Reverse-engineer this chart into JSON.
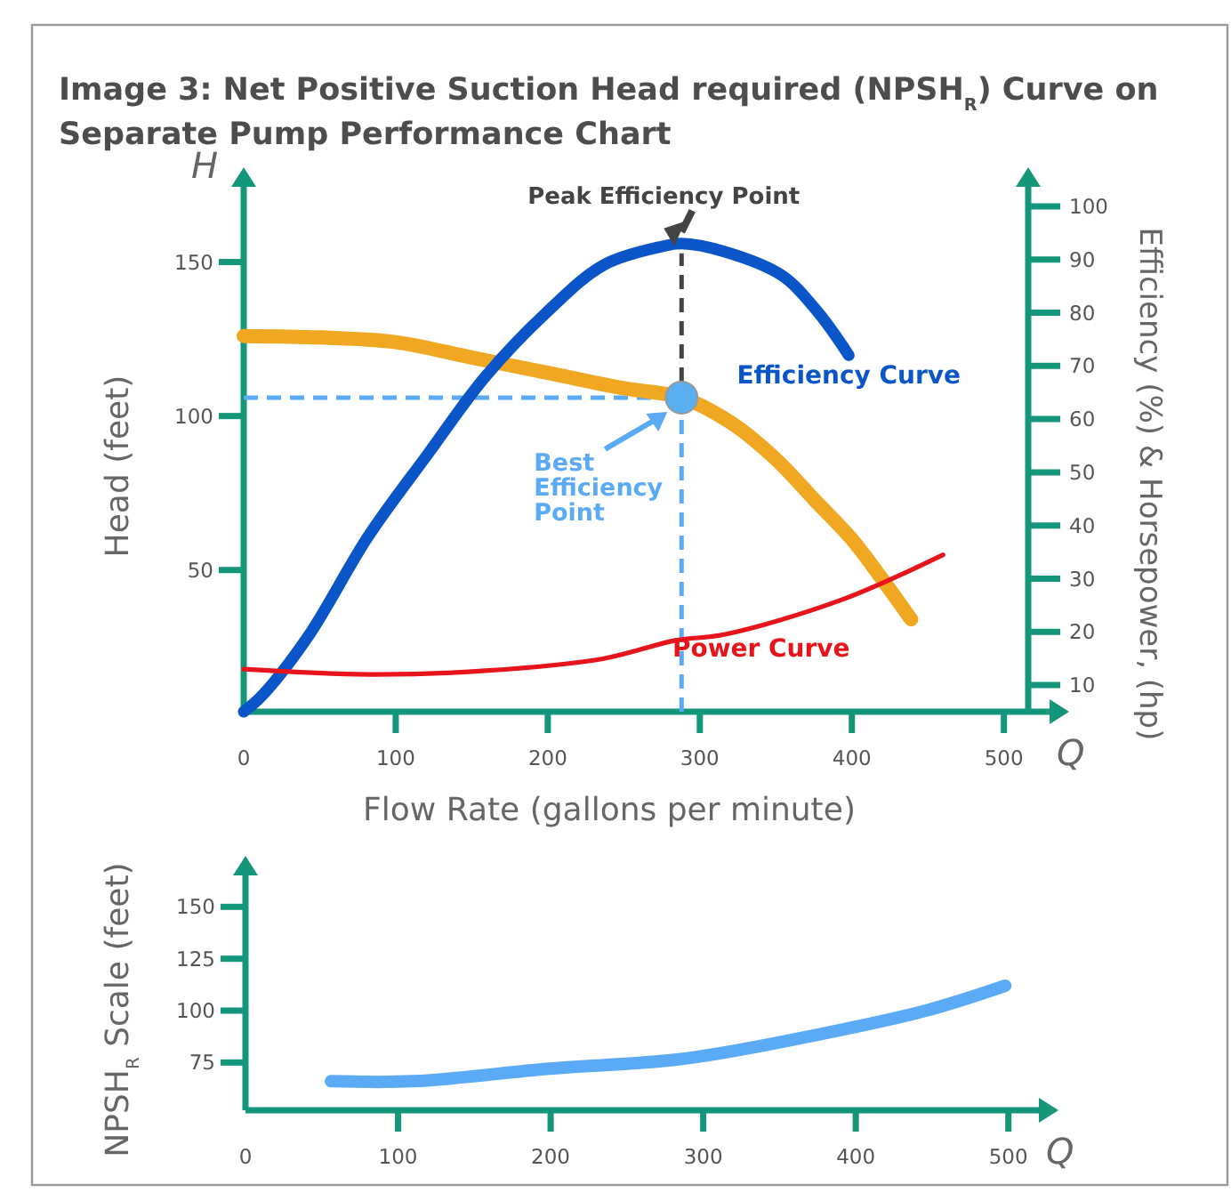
{
  "chart_data": [
    {
      "type": "line",
      "title": "Image 3: Net Positive Suction Head required (NPSH$_{R}$) Curve on Separate Pump Performance Chart",
      "xlabel": "Flow Rate (gallons per minute)",
      "ylabel": "Head (feet)",
      "y2label": "Efficiency (%) & Horsepower, (hp)",
      "xlim": [
        0,
        516
      ],
      "xticks": [
        0,
        100,
        200,
        300,
        400,
        500
      ],
      "ylim": [
        4,
        175
      ],
      "yticks": [
        50,
        100,
        150
      ],
      "y2lim": [
        5,
        104
      ],
      "y2ticks": [
        10,
        20,
        30,
        40,
        50,
        60,
        70,
        80,
        90,
        100
      ],
      "grid": false,
      "legend": false,
      "series": [
        {
          "color": "#f0a823",
          "x": [
            0,
            50,
            100,
            150,
            200,
            250,
            288,
            320,
            350,
            375,
            400,
            420,
            439
          ],
          "values": [
            126,
            125.5,
            124,
            119,
            114,
            109,
            106,
            98,
            86,
            73,
            60,
            47,
            34
          ]
        },
        {
          "name": "Efficiency Curve",
          "axis": "y2",
          "color": "#0a55c8",
          "x": [
            0,
            12,
            42,
            82,
            120,
            159,
            199,
            237,
            276,
            288,
            316,
            354,
            378,
            398
          ],
          "values": [
            5,
            8,
            19,
            38,
            53,
            68,
            80,
            89,
            92.5,
            93,
            91.5,
            87,
            80,
            72
          ]
        },
        {
          "name": "Power Curve",
          "axis": "y2",
          "color": "#e8141c",
          "x": [
            0,
            82,
            159,
            237,
            284,
            316,
            393,
            460
          ],
          "values": [
            13,
            12,
            12.7,
            15,
            18.4,
            19.5,
            26,
            34.5
          ]
        },
        {
          "type": "scatter",
          "color": "#5aaff0",
          "x": [
            288
          ],
          "values": [
            106
          ]
        }
      ],
      "ref_lines": [
        {
          "axis": "x",
          "value": 288,
          "color": "#5aaaf5",
          "line_style": "dashed"
        },
        {
          "axis": "y",
          "value": 106,
          "color": "#5aaaf5",
          "line_style": "dashed"
        },
        {
          "axis": "x",
          "value": 288,
          "color": "#444444",
          "line_style": "dashed"
        }
      ],
      "annotations": [
        "H",
        "Q",
        {
          "text": "Peak Efficiency Point",
          "x": 288,
          "y": 154
        },
        {
          "text": "Best Efficiency Point",
          "x": 288,
          "y": 106
        }
      ]
    },
    {
      "type": "line",
      "ylabel": "NPSH$_{R}$ Scale (feet)",
      "xlim": [
        0,
        520
      ],
      "xticks": [
        0,
        100,
        200,
        300,
        400,
        500
      ],
      "ylim": [
        52,
        166
      ],
      "yticks": [
        75,
        100,
        125,
        150
      ],
      "grid": false,
      "legend": false,
      "series": [
        {
          "color": "#5aaaf5",
          "x": [
            56,
            110,
            199,
            289,
            379,
            446,
            498
          ],
          "values": [
            66,
            66,
            72,
            77,
            89,
            100,
            112
          ]
        }
      ],
      "annotations": [
        "Q"
      ]
    }
  ]
}
